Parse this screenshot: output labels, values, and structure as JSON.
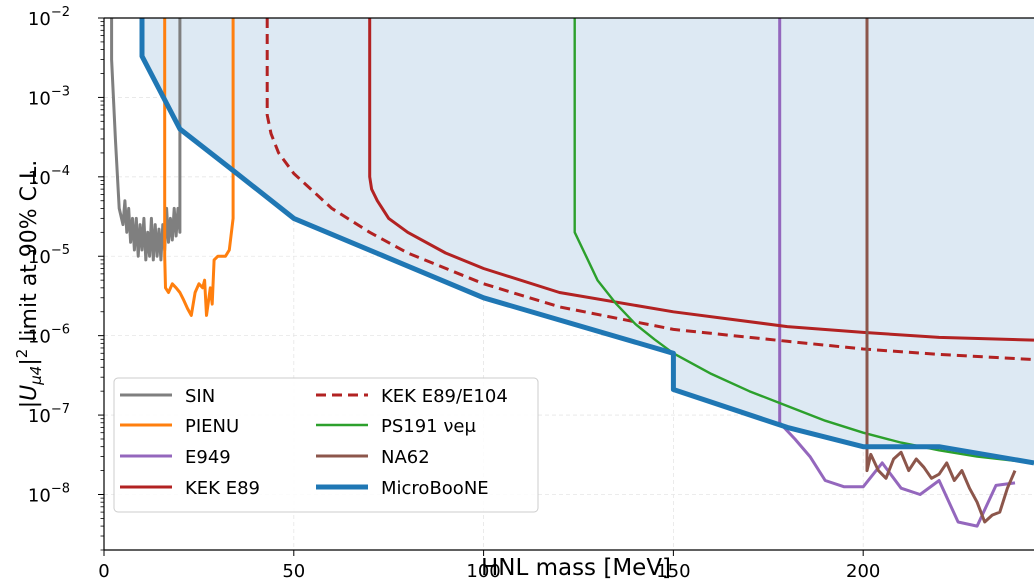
{
  "chart_data": {
    "type": "line",
    "xlabel": "HNL mass [MeV]",
    "ylabel": "|U_{μ4}|² limit at 90% C.L.",
    "ylabel_parts": {
      "pre": "|",
      "sym": "U",
      "sub": "μ4",
      "mid": "|",
      "sup": "2",
      "post": " limit at 90% C.L."
    },
    "xlim": [
      0,
      245
    ],
    "ylim": [
      2e-09,
      0.01
    ],
    "yscale": "log",
    "xticks": [
      {
        "value": 0,
        "label": "0"
      },
      {
        "value": 50,
        "label": "50"
      },
      {
        "value": 100,
        "label": "100"
      },
      {
        "value": 150,
        "label": "150"
      },
      {
        "value": 200,
        "label": "200"
      }
    ],
    "yticks": [
      {
        "value": 0.01,
        "base": "10",
        "exp": "−2"
      },
      {
        "value": 0.001,
        "base": "10",
        "exp": "−3"
      },
      {
        "value": 0.0001,
        "base": "10",
        "exp": "−4"
      },
      {
        "value": 1e-05,
        "base": "10",
        "exp": "−5"
      },
      {
        "value": 1e-06,
        "base": "10",
        "exp": "−6"
      },
      {
        "value": 1e-07,
        "base": "10",
        "exp": "−7"
      },
      {
        "value": 1e-08,
        "base": "10",
        "exp": "−8"
      }
    ],
    "grid": true,
    "legend_position": "lower-left",
    "excluded_fill_color": "#dde9f3",
    "series": [
      {
        "name": "SIN",
        "color": "#7f7f7f",
        "dash": "solid",
        "width": 3,
        "points": [
          [
            2,
            0.01
          ],
          [
            2,
            0.003
          ],
          [
            3,
            0.0003
          ],
          [
            4,
            4e-05
          ],
          [
            5,
            2.5e-05
          ],
          [
            5.5,
            5e-05
          ],
          [
            6,
            2e-05
          ],
          [
            6.5,
            4e-05
          ],
          [
            7,
            1.5e-05
          ],
          [
            7.5,
            3e-05
          ],
          [
            8,
            1.2e-05
          ],
          [
            8.5,
            3e-05
          ],
          [
            9,
            1e-05
          ],
          [
            9.5,
            2.5e-05
          ],
          [
            10,
            1.2e-05
          ],
          [
            10.5,
            3e-05
          ],
          [
            11,
            9e-06
          ],
          [
            11.5,
            2e-05
          ],
          [
            12,
            1e-05
          ],
          [
            12.5,
            3e-05
          ],
          [
            13,
            9e-06
          ],
          [
            13.5,
            2.5e-05
          ],
          [
            14,
            1e-05
          ],
          [
            14.5,
            2.2e-05
          ],
          [
            15,
            9e-06
          ],
          [
            15.5,
            2.5e-05
          ],
          [
            16,
            1.2e-05
          ],
          [
            16.5,
            4e-05
          ],
          [
            17,
            1.5e-05
          ],
          [
            17.5,
            3e-05
          ],
          [
            18,
            1.6e-05
          ],
          [
            18.5,
            4e-05
          ],
          [
            19,
            1.8e-05
          ],
          [
            19.5,
            4e-05
          ],
          [
            20,
            2e-05
          ],
          [
            20,
            0.01
          ]
        ]
      },
      {
        "name": "PIENU",
        "color": "#ff7f0e",
        "dash": "solid",
        "width": 3,
        "points": [
          [
            16,
            0.01
          ],
          [
            16,
            1e-05
          ],
          [
            16.2,
            4e-06
          ],
          [
            17,
            3.5e-06
          ],
          [
            18,
            4.5e-06
          ],
          [
            19,
            4e-06
          ],
          [
            20,
            3.5e-06
          ],
          [
            21,
            2.8e-06
          ],
          [
            22,
            2.2e-06
          ],
          [
            23,
            1.8e-06
          ],
          [
            24,
            3.5e-06
          ],
          [
            25,
            4.5e-06
          ],
          [
            26,
            4e-06
          ],
          [
            26.5,
            5e-06
          ],
          [
            27,
            1.8e-06
          ],
          [
            28,
            4e-06
          ],
          [
            28.5,
            2.5e-06
          ],
          [
            29,
            9e-06
          ],
          [
            30,
            1e-05
          ],
          [
            32,
            1e-05
          ],
          [
            33,
            1.2e-05
          ],
          [
            34,
            3e-05
          ],
          [
            34,
            0.01
          ]
        ]
      },
      {
        "name": "E949",
        "color": "#9467bd",
        "dash": "solid",
        "width": 3,
        "points": [
          [
            178,
            0.01
          ],
          [
            178,
            8e-08
          ],
          [
            182,
            5e-08
          ],
          [
            186,
            3e-08
          ],
          [
            190,
            1.5e-08
          ],
          [
            195,
            1.25e-08
          ],
          [
            200,
            1.25e-08
          ],
          [
            205,
            2.5e-08
          ],
          [
            210,
            1.2e-08
          ],
          [
            215,
            1e-08
          ],
          [
            220,
            1.5e-08
          ],
          [
            225,
            4.5e-09
          ],
          [
            230,
            4e-09
          ],
          [
            235,
            1.3e-08
          ],
          [
            240,
            1.4e-08
          ]
        ]
      },
      {
        "name": "KEK E89",
        "color": "#b22222",
        "dash": "solid",
        "width": 3,
        "points": [
          [
            70,
            0.01
          ],
          [
            70,
            0.0001
          ],
          [
            70.5,
            7e-05
          ],
          [
            72,
            5e-05
          ],
          [
            75,
            3e-05
          ],
          [
            80,
            2e-05
          ],
          [
            90,
            1.1e-05
          ],
          [
            100,
            7e-06
          ],
          [
            120,
            3.5e-06
          ],
          [
            150,
            2e-06
          ],
          [
            180,
            1.3e-06
          ],
          [
            200,
            1.1e-06
          ],
          [
            220,
            9.5e-07
          ],
          [
            245,
            8.8e-07
          ]
        ]
      },
      {
        "name": "KEK E89/E104",
        "color": "#b22222",
        "dash": "dashed",
        "width": 3,
        "points": [
          [
            43,
            0.01
          ],
          [
            43,
            0.0006
          ],
          [
            44,
            0.00035
          ],
          [
            46,
            0.0002
          ],
          [
            50,
            0.00011
          ],
          [
            60,
            4e-05
          ],
          [
            70,
            2e-05
          ],
          [
            80,
            1.1e-05
          ],
          [
            100,
            4.5e-06
          ],
          [
            120,
            2.3e-06
          ],
          [
            150,
            1.2e-06
          ],
          [
            180,
            8.5e-07
          ],
          [
            200,
            6.8e-07
          ],
          [
            220,
            5.8e-07
          ],
          [
            245,
            5e-07
          ]
        ]
      },
      {
        "name": "PS191 νeμ",
        "color": "#2ca02c",
        "dash": "solid",
        "width": 2.4,
        "points": [
          [
            124,
            0.01
          ],
          [
            124,
            2e-05
          ],
          [
            127,
            1e-05
          ],
          [
            130,
            5e-06
          ],
          [
            135,
            2.5e-06
          ],
          [
            140,
            1.4e-06
          ],
          [
            145,
            9e-07
          ],
          [
            150,
            6e-07
          ],
          [
            160,
            3.3e-07
          ],
          [
            170,
            2e-07
          ],
          [
            180,
            1.3e-07
          ],
          [
            190,
            8.5e-08
          ],
          [
            200,
            6e-08
          ],
          [
            210,
            4.5e-08
          ],
          [
            220,
            3.6e-08
          ],
          [
            230,
            3e-08
          ],
          [
            245,
            2.5e-08
          ]
        ]
      },
      {
        "name": "NA62",
        "color": "#8c564b",
        "dash": "solid",
        "width": 3,
        "points": [
          [
            201,
            0.01
          ],
          [
            201,
            2e-08
          ],
          [
            202,
            3.2e-08
          ],
          [
            204,
            2e-08
          ],
          [
            206,
            1.6e-08
          ],
          [
            208,
            2.8e-08
          ],
          [
            210,
            3.4e-08
          ],
          [
            212,
            2e-08
          ],
          [
            214,
            2.8e-08
          ],
          [
            216,
            2.2e-08
          ],
          [
            218,
            1.6e-08
          ],
          [
            220,
            1.8e-08
          ],
          [
            222,
            2.5e-08
          ],
          [
            224,
            1.5e-08
          ],
          [
            226,
            2e-08
          ],
          [
            228,
            1.2e-08
          ],
          [
            230,
            8e-09
          ],
          [
            232,
            4.5e-09
          ],
          [
            234,
            5.5e-09
          ],
          [
            236,
            6e-09
          ],
          [
            238,
            1.2e-08
          ],
          [
            240,
            2e-08
          ]
        ]
      },
      {
        "name": "MicroBooNE",
        "color": "#1f77b4",
        "dash": "solid",
        "width": 5,
        "points": [
          [
            10,
            0.01
          ],
          [
            10,
            0.0033
          ],
          [
            20,
            0.0004
          ],
          [
            34,
            0.00012
          ],
          [
            50,
            3e-05
          ],
          [
            100,
            3e-06
          ],
          [
            150,
            6e-07
          ],
          [
            150,
            2.1e-07
          ],
          [
            180,
            7e-08
          ],
          [
            200,
            4e-08
          ],
          [
            220,
            4e-08
          ],
          [
            245,
            2.5e-08
          ]
        ]
      }
    ]
  }
}
